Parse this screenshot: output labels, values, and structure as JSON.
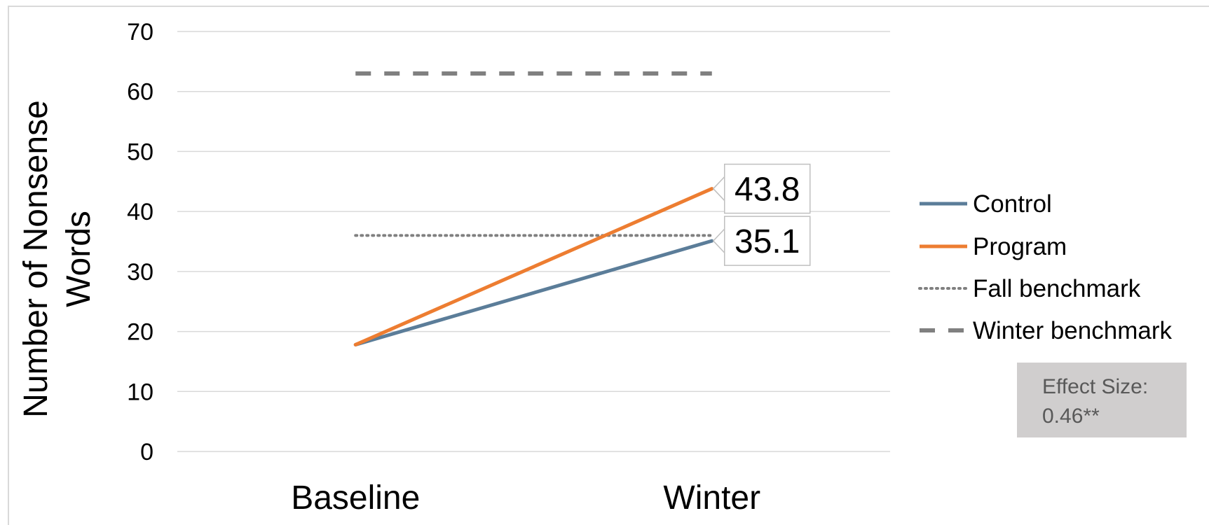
{
  "chart_data": {
    "type": "line",
    "categories": [
      "Baseline",
      "Winter"
    ],
    "ylabel": [
      "Number of Nonsense",
      "Words"
    ],
    "ylim": [
      0,
      70
    ],
    "yticks": [
      0,
      10,
      20,
      30,
      40,
      50,
      60,
      70
    ],
    "grid": true,
    "legend_position": "right",
    "series": [
      {
        "name": "Control",
        "values": [
          17.8,
          35.1
        ],
        "color": "#5b7d99",
        "style": "solid",
        "labels": [
          "",
          "35.1"
        ]
      },
      {
        "name": "Program",
        "values": [
          17.8,
          43.8
        ],
        "color": "#ed7d31",
        "style": "solid",
        "labels": [
          "",
          "43.8"
        ]
      },
      {
        "name": "Fall benchmark",
        "values": [
          36,
          36
        ],
        "color": "#808080",
        "style": "dotted"
      },
      {
        "name": "Winter benchmark",
        "values": [
          63,
          63
        ],
        "color": "#808080",
        "style": "dashed"
      }
    ],
    "annotation": {
      "line1": "Effect Size:",
      "line2": "0.46**"
    }
  }
}
